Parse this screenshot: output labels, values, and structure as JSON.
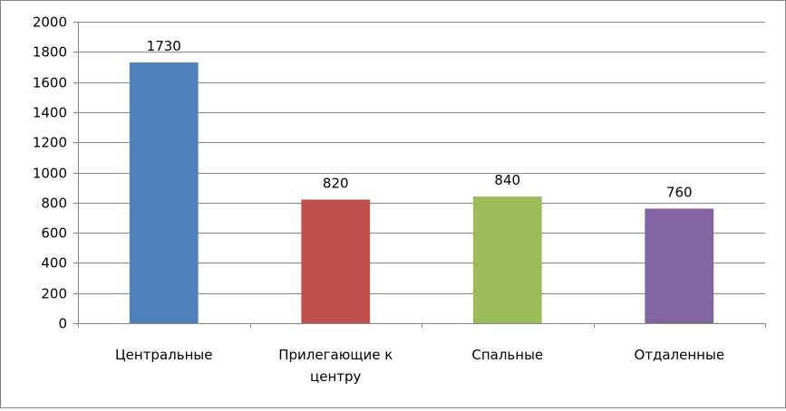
{
  "chart_data": {
    "type": "bar",
    "categories": [
      "Центральные",
      "Прилегающие к центру",
      "Спальные",
      "Отдаленные"
    ],
    "category_lines": [
      [
        "Центральные"
      ],
      [
        "Прилегающие к",
        "центру"
      ],
      [
        "Спальные"
      ],
      [
        "Отдаленные"
      ]
    ],
    "values": [
      1730,
      820,
      840,
      760
    ],
    "data_labels": [
      "1730",
      "820",
      "840",
      "760"
    ],
    "colors": [
      "#4F81BD",
      "#C0504D",
      "#9BBB59",
      "#8064A2"
    ],
    "ylim": [
      0,
      2000
    ],
    "yticks": [
      0,
      200,
      400,
      600,
      800,
      1000,
      1200,
      1400,
      1600,
      1800,
      2000
    ],
    "ytick_labels": [
      "0",
      "200",
      "400",
      "600",
      "800",
      "1000",
      "1200",
      "1400",
      "1600",
      "1800",
      "2000"
    ],
    "grid": true,
    "legend": "none",
    "title": "",
    "xlabel": "",
    "ylabel": ""
  }
}
